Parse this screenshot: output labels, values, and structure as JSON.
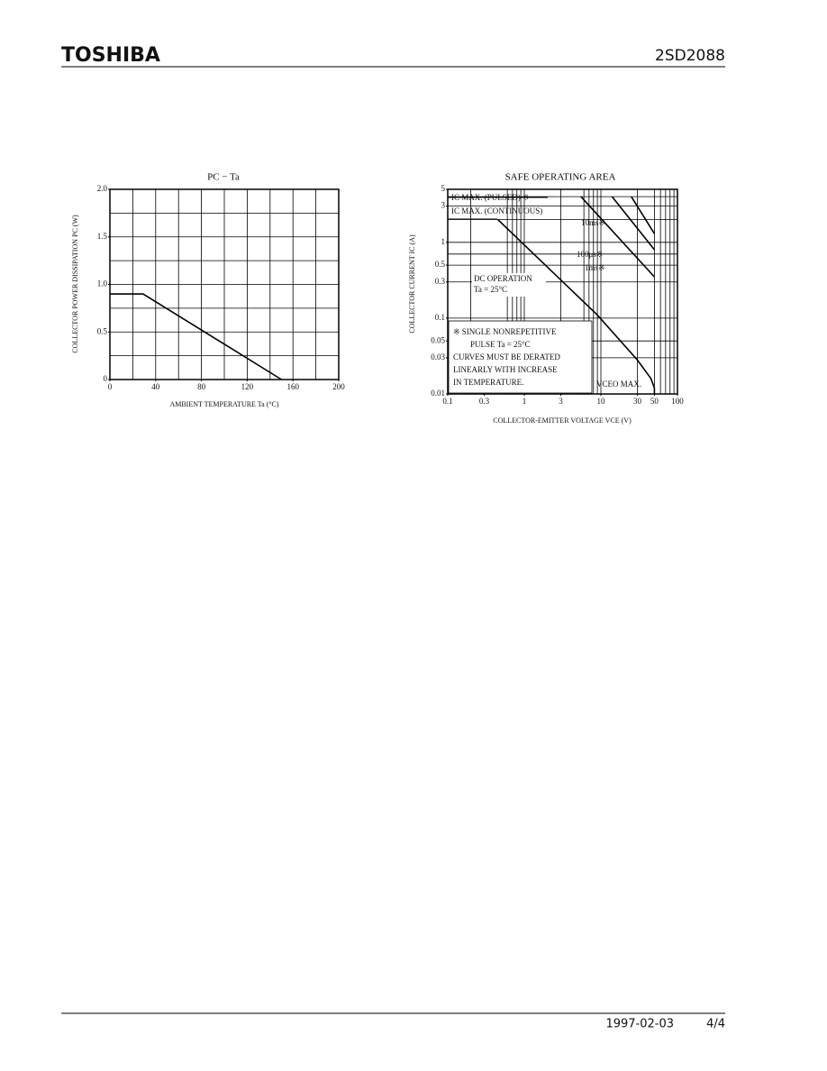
{
  "header": {
    "logo": "TOSHIBA",
    "part": "2SD2088"
  },
  "chart_data": [
    {
      "type": "line",
      "title": "PC − Ta",
      "x_label": "AMBIENT TEMPERATURE   Ta   (°C)",
      "y_label": "COLLECTOR POWER DISSIPATION   PC   (W)",
      "xlim": [
        0,
        200
      ],
      "ylim": [
        0,
        2
      ],
      "xticks": [
        0,
        40,
        80,
        120,
        160,
        200
      ],
      "yticks": [
        0,
        0.5,
        {
          "value": 1,
          "label": "1.0"
        },
        1.5,
        {
          "value": 2,
          "label": "2.0"
        }
      ],
      "xgrid": [
        0,
        20,
        40,
        60,
        80,
        100,
        120,
        140,
        160,
        180,
        200
      ],
      "ygrid": [
        0,
        0.25,
        0.5,
        0.75,
        1,
        1.25,
        1.5,
        1.75,
        2
      ],
      "series": [
        {
          "x": [
            0,
            29,
            150
          ],
          "values": [
            0.9,
            0.9,
            0
          ],
          "color": "#000000"
        }
      ]
    },
    {
      "type": "line",
      "log": true,
      "title": "SAFE OPERATING AREA",
      "x_label": "COLLECTOR-EMITTER VOLTAGE   VCE   (V)",
      "y_label": "COLLECTOR CURRENT   IC   (A)",
      "xlim": [
        0.1,
        100
      ],
      "ylim": [
        0.01,
        5
      ],
      "xticks": [
        0.1,
        0.3,
        1,
        3,
        10,
        30,
        50,
        100
      ],
      "yticks": [
        0.01,
        0.03,
        0.05,
        0.1,
        0.3,
        0.5,
        1,
        3,
        5
      ],
      "xgrid": [
        0.2,
        0.6,
        0.7,
        0.8,
        0.9,
        1,
        3,
        6,
        7,
        8,
        9,
        10,
        30,
        50,
        60,
        70,
        80,
        90,
        100
      ],
      "ygrid": [
        0.03,
        0.05,
        0.1,
        0.3,
        0.5,
        0.7,
        1,
        2,
        3,
        4,
        5
      ],
      "series": [
        {
          "name": "DC OPERATION",
          "x": [
            0.45,
            9,
            30,
            45,
            50,
            50
          ],
          "values": [
            2,
            0.11,
            0.028,
            0.016,
            0.012,
            0.01
          ],
          "color": "#000000"
        },
        {
          "name": "10ms※",
          "x": [
            5.5,
            50
          ],
          "values": [
            4,
            0.35
          ],
          "color": "#000000"
        },
        {
          "name": "100μs※",
          "x": [
            25,
            50
          ],
          "values": [
            4,
            1.3
          ],
          "color": "#000000"
        },
        {
          "name": "1ms※",
          "x": [
            14,
            50
          ],
          "values": [
            4,
            0.8
          ],
          "color": "#000000"
        }
      ],
      "annotations": [
        "IC MAX. (PULSED) ※",
        "IC MAX. (CONTINUOUS)",
        "Ta = 25°C",
        "※  SINGLE NONREPETITIVE",
        "PULSE  Ta = 25°C",
        "CURVES MUST BE DERATED",
        "LINEARLY WITH INCREASE",
        "IN TEMPERATURE.",
        "VCEO  MAX."
      ]
    }
  ],
  "footer": {
    "date": "1997-02-03",
    "page": "4/4"
  }
}
